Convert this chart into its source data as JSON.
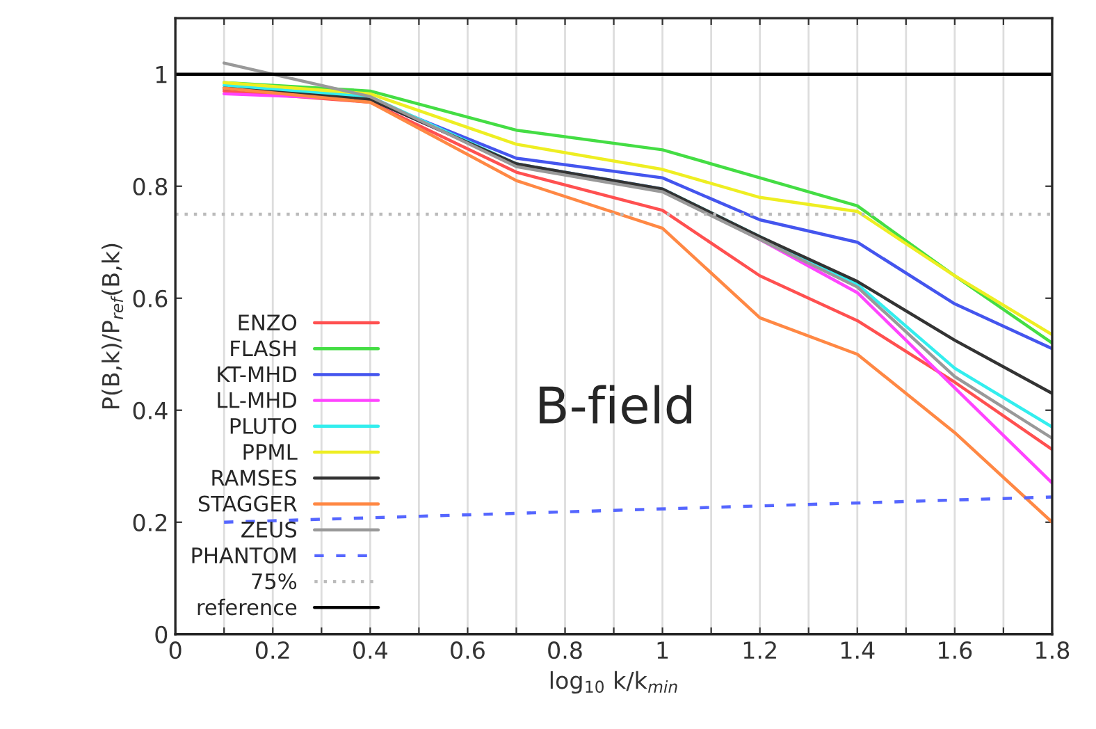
{
  "chart_data": {
    "type": "line",
    "xlabel": "log$_{10}$ k/k$_{min}$",
    "ylabel": "P(B,k)/P$_{ref}$(B,k)",
    "x": [
      0.1,
      0.4,
      0.7,
      1.0,
      1.2,
      1.4,
      1.6,
      1.8
    ],
    "series": [
      {
        "name": "ENZO",
        "color": "#ff5050",
        "values": [
          0.97,
          0.95,
          0.825,
          0.757,
          0.64,
          0.56,
          0.45,
          0.33
        ]
      },
      {
        "name": "FLASH",
        "color": "#44dd44",
        "values": [
          0.985,
          0.97,
          0.9,
          0.865,
          0.815,
          0.765,
          0.64,
          0.52
        ]
      },
      {
        "name": "KT-MHD",
        "color": "#4455ee",
        "values": [
          0.975,
          0.955,
          0.85,
          0.815,
          0.74,
          0.7,
          0.59,
          0.51
        ]
      },
      {
        "name": "LL-MHD",
        "color": "#ff44ff",
        "values": [
          0.965,
          0.955,
          0.84,
          0.795,
          0.705,
          0.61,
          0.44,
          0.27
        ]
      },
      {
        "name": "PLUTO",
        "color": "#33eeee",
        "values": [
          0.98,
          0.96,
          0.84,
          0.795,
          0.71,
          0.625,
          0.475,
          0.37
        ]
      },
      {
        "name": "PPML",
        "color": "#eeee22",
        "values": [
          0.985,
          0.965,
          0.875,
          0.83,
          0.78,
          0.755,
          0.64,
          0.535
        ]
      },
      {
        "name": "RAMSES",
        "color": "#333333",
        "values": [
          0.975,
          0.955,
          0.84,
          0.795,
          0.71,
          0.63,
          0.525,
          0.43
        ]
      },
      {
        "name": "STAGGER",
        "color": "#ff8844",
        "values": [
          0.975,
          0.95,
          0.81,
          0.725,
          0.565,
          0.5,
          0.36,
          0.2
        ]
      },
      {
        "name": "ZEUS",
        "color": "#999999",
        "values": [
          1.02,
          0.96,
          0.835,
          0.79,
          0.705,
          0.62,
          0.46,
          0.35
        ]
      },
      {
        "name": "PHANTOM",
        "color": "#5566ff",
        "line_style": "dashed",
        "x": [
          0.1,
          1.8
        ],
        "values": [
          0.2,
          0.245
        ]
      },
      {
        "name": "75%",
        "color": "#bbbbbb",
        "line_style": "dotted",
        "x": [
          0,
          1.8
        ],
        "values": [
          0.75,
          0.75
        ]
      },
      {
        "name": "reference",
        "color": "#000000",
        "x": [
          0,
          1.8
        ],
        "values": [
          1,
          1
        ]
      }
    ],
    "annotations": [
      "B-field"
    ],
    "xlim": [
      0,
      1.8
    ],
    "ylim": [
      0,
      1.1
    ],
    "xticks": [
      0,
      {
        "value": 0.1,
        "label": null
      },
      0.2,
      {
        "value": 0.3,
        "label": null
      },
      0.4,
      {
        "value": 0.5,
        "label": null
      },
      0.6,
      {
        "value": 0.7,
        "label": null
      },
      0.8,
      {
        "value": 0.9,
        "label": null
      },
      1,
      {
        "value": 1.1,
        "label": null
      },
      1.2,
      {
        "value": 1.3,
        "label": null
      },
      1.4,
      {
        "value": 1.5,
        "label": null
      },
      1.6,
      {
        "value": 1.7,
        "label": null
      },
      1.8
    ],
    "yticks": [
      0,
      0.2,
      0.4,
      0.6,
      0.8,
      1
    ],
    "grid": "x",
    "legend": "bottom left",
    "line_style": "solid",
    "marker": "none"
  }
}
